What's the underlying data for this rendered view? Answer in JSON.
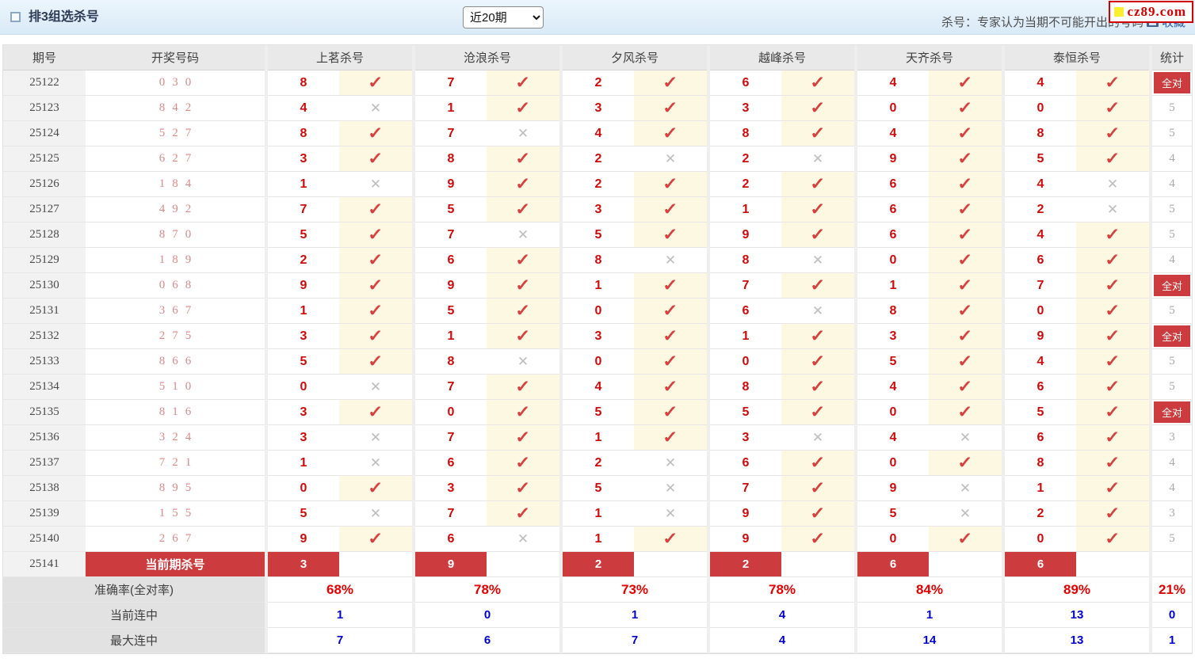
{
  "header_bar": {
    "title": "排3组选杀号",
    "range_select": {
      "value": "近20期",
      "options": [
        "近20期"
      ]
    },
    "note": "杀号：专家认为当期不可能开出的号码",
    "favorite_label": "收藏",
    "logo_text": "cz89.com"
  },
  "colors": {
    "accent": "#cc3c3e",
    "kill_red": "#cf0a0a",
    "check_red": "#d8403f",
    "value_red": "#e60000",
    "value_blue": "#0000cc",
    "link_blue": "#2a5db0",
    "logo_red": "#d40000",
    "logo_yellow": "#fdee30",
    "check_cell_bg": "#fcf8e2"
  },
  "table": {
    "columns": {
      "period": "期号",
      "draw": "开奖号码",
      "stat": "统计"
    },
    "experts": [
      "上茗杀号",
      "沧浪杀号",
      "夕风杀号",
      "越峰杀号",
      "天齐杀号",
      "泰恒杀号"
    ],
    "all_correct_label": "全对",
    "check_glyph": "✓",
    "cross_glyph": "✕",
    "rows": [
      {
        "period": "25122",
        "draw": "030",
        "kills": [
          "8",
          "7",
          "2",
          "6",
          "4",
          "4"
        ],
        "marks": [
          1,
          1,
          1,
          1,
          1,
          1
        ],
        "stat": "全对"
      },
      {
        "period": "25123",
        "draw": "842",
        "kills": [
          "4",
          "1",
          "3",
          "3",
          "0",
          "0"
        ],
        "marks": [
          0,
          1,
          1,
          1,
          1,
          1
        ],
        "stat": "5"
      },
      {
        "period": "25124",
        "draw": "527",
        "kills": [
          "8",
          "7",
          "4",
          "8",
          "4",
          "8"
        ],
        "marks": [
          1,
          0,
          1,
          1,
          1,
          1
        ],
        "stat": "5"
      },
      {
        "period": "25125",
        "draw": "627",
        "kills": [
          "3",
          "8",
          "2",
          "2",
          "9",
          "5"
        ],
        "marks": [
          1,
          1,
          0,
          0,
          1,
          1
        ],
        "stat": "4"
      },
      {
        "period": "25126",
        "draw": "184",
        "kills": [
          "1",
          "9",
          "2",
          "2",
          "6",
          "4"
        ],
        "marks": [
          0,
          1,
          1,
          1,
          1,
          0
        ],
        "stat": "4"
      },
      {
        "period": "25127",
        "draw": "492",
        "kills": [
          "7",
          "5",
          "3",
          "1",
          "6",
          "2"
        ],
        "marks": [
          1,
          1,
          1,
          1,
          1,
          0
        ],
        "stat": "5"
      },
      {
        "period": "25128",
        "draw": "870",
        "kills": [
          "5",
          "7",
          "5",
          "9",
          "6",
          "4"
        ],
        "marks": [
          1,
          0,
          1,
          1,
          1,
          1
        ],
        "stat": "5"
      },
      {
        "period": "25129",
        "draw": "189",
        "kills": [
          "2",
          "6",
          "8",
          "8",
          "0",
          "6"
        ],
        "marks": [
          1,
          1,
          0,
          0,
          1,
          1
        ],
        "stat": "4"
      },
      {
        "period": "25130",
        "draw": "068",
        "kills": [
          "9",
          "9",
          "1",
          "7",
          "1",
          "7"
        ],
        "marks": [
          1,
          1,
          1,
          1,
          1,
          1
        ],
        "stat": "全对"
      },
      {
        "period": "25131",
        "draw": "367",
        "kills": [
          "1",
          "5",
          "0",
          "6",
          "8",
          "0"
        ],
        "marks": [
          1,
          1,
          1,
          0,
          1,
          1
        ],
        "stat": "5"
      },
      {
        "period": "25132",
        "draw": "275",
        "kills": [
          "3",
          "1",
          "3",
          "1",
          "3",
          "9"
        ],
        "marks": [
          1,
          1,
          1,
          1,
          1,
          1
        ],
        "stat": "全对"
      },
      {
        "period": "25133",
        "draw": "866",
        "kills": [
          "5",
          "8",
          "0",
          "0",
          "5",
          "4"
        ],
        "marks": [
          1,
          0,
          1,
          1,
          1,
          1
        ],
        "stat": "5"
      },
      {
        "period": "25134",
        "draw": "510",
        "kills": [
          "0",
          "7",
          "4",
          "8",
          "4",
          "6"
        ],
        "marks": [
          0,
          1,
          1,
          1,
          1,
          1
        ],
        "stat": "5"
      },
      {
        "period": "25135",
        "draw": "816",
        "kills": [
          "3",
          "0",
          "5",
          "5",
          "0",
          "5"
        ],
        "marks": [
          1,
          1,
          1,
          1,
          1,
          1
        ],
        "stat": "全对"
      },
      {
        "period": "25136",
        "draw": "324",
        "kills": [
          "3",
          "7",
          "1",
          "3",
          "4",
          "6"
        ],
        "marks": [
          0,
          1,
          1,
          0,
          0,
          1
        ],
        "stat": "3"
      },
      {
        "period": "25137",
        "draw": "721",
        "kills": [
          "1",
          "6",
          "2",
          "6",
          "0",
          "8"
        ],
        "marks": [
          0,
          1,
          0,
          1,
          1,
          1
        ],
        "stat": "4"
      },
      {
        "period": "25138",
        "draw": "895",
        "kills": [
          "0",
          "3",
          "5",
          "7",
          "9",
          "1"
        ],
        "marks": [
          1,
          1,
          0,
          1,
          0,
          1
        ],
        "stat": "4"
      },
      {
        "period": "25139",
        "draw": "155",
        "kills": [
          "5",
          "7",
          "1",
          "9",
          "5",
          "2"
        ],
        "marks": [
          0,
          1,
          0,
          1,
          0,
          1
        ],
        "stat": "3"
      },
      {
        "period": "25140",
        "draw": "267",
        "kills": [
          "9",
          "6",
          "1",
          "9",
          "0",
          "0"
        ],
        "marks": [
          1,
          0,
          1,
          1,
          1,
          1
        ],
        "stat": "5"
      }
    ],
    "current_row": {
      "period": "25141",
      "label": "当前期杀号",
      "kills": [
        "3",
        "9",
        "2",
        "2",
        "6",
        "6"
      ]
    },
    "summary_rows": [
      {
        "label": "准确率(全对率)",
        "values": [
          "68%",
          "78%",
          "73%",
          "78%",
          "84%",
          "89%"
        ],
        "stat": "21%",
        "color": "red"
      },
      {
        "label": "当前连中",
        "values": [
          "1",
          "0",
          "1",
          "4",
          "1",
          "13"
        ],
        "stat": "0",
        "color": "blue"
      },
      {
        "label": "最大连中",
        "values": [
          "7",
          "6",
          "7",
          "4",
          "14",
          "13"
        ],
        "stat": "1",
        "color": "blue"
      }
    ]
  }
}
